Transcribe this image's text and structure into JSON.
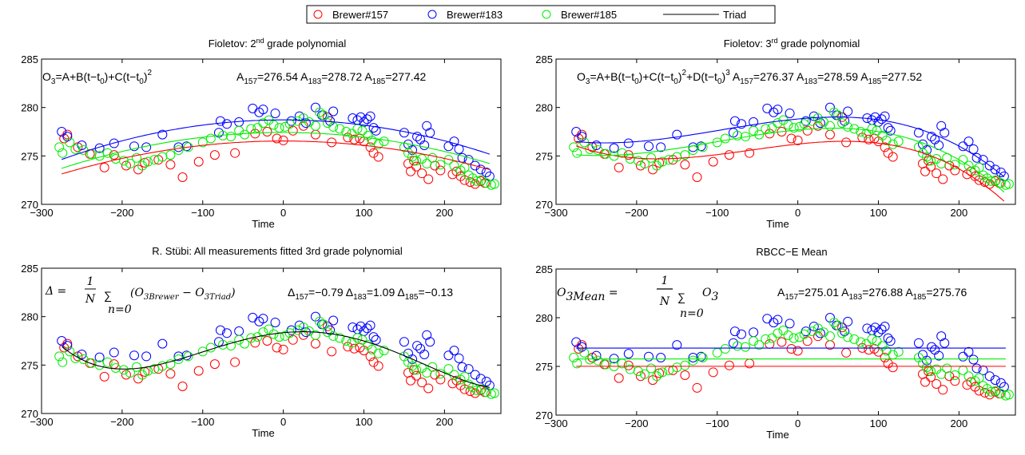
{
  "legend": {
    "entries": [
      {
        "label": "Brewer#157",
        "color": "#ff0000",
        "marker": "circle"
      },
      {
        "label": "Brewer#183",
        "color": "#0000ff",
        "marker": "circle"
      },
      {
        "label": "Brewer#185",
        "color": "#00ee00",
        "marker": "circle"
      },
      {
        "label": "Triad",
        "color": "#000000",
        "marker": "line"
      }
    ]
  },
  "panels": [
    {
      "formula_text": "O3=A+B(t−t0)+C(t−t0)²",
      "formula_parts": {
        "lhs": "O",
        "lhs_sub": "3",
        "eq": "=A+B(t−t",
        "t_sub": "0",
        "mid": ")+C(t−t",
        "t_sub2": "0",
        "end": ")",
        "pow": "2"
      },
      "stats": [
        {
          "prefix": "A",
          "sub": "157",
          "value": "=276.54"
        },
        {
          "prefix": "A",
          "sub": "183",
          "value": "=278.72"
        },
        {
          "prefix": "A",
          "sub": "185",
          "value": "=277.42"
        }
      ]
    },
    {
      "formula_text": "O3=A+B(t−t0)+C(t−t0)²+D(t−t0)³",
      "formula_parts": {
        "lhs": "O",
        "lhs_sub": "3",
        "p1": "=A+B(t−t",
        "s1": "0",
        "p2": ")+C(t−t",
        "s2": "0",
        "p3": ")",
        "pow2": "2",
        "p4": "+D(t−t",
        "s3": "0",
        "p5": ")",
        "pow3": "3"
      },
      "stats": [
        {
          "prefix": "A",
          "sub": "157",
          "value": "=276.37"
        },
        {
          "prefix": "A",
          "sub": "183",
          "value": "=278.59"
        },
        {
          "prefix": "A",
          "sub": "185",
          "value": "=277.52"
        }
      ]
    },
    {
      "formula_parts": {
        "delta": "Δ = ",
        "num": "1",
        "den": "N",
        "sum": "∑",
        "sub": "n=0",
        "body": "(O",
        "s1": "3Brewer",
        "minus": " − O",
        "s2": "3Triad",
        "close": ")"
      },
      "stats": [
        {
          "prefix": "Δ",
          "sub": "157",
          "value": "=−0.79"
        },
        {
          "prefix": "Δ",
          "sub": "183",
          "value": "=1.09"
        },
        {
          "prefix": "Δ",
          "sub": "185",
          "value": "=−0.13"
        }
      ]
    },
    {
      "formula_parts": {
        "lhs": "O",
        "lhs_sub": "3Mean",
        "eq": " = ",
        "num": "1",
        "den": "N",
        "sum": "∑",
        "sub": "n=0",
        "body": "O",
        "body_sub": "3"
      },
      "stats": [
        {
          "prefix": "A",
          "sub": "157",
          "value": "=275.01"
        },
        {
          "prefix": "A",
          "sub": "183",
          "value": "=276.88"
        },
        {
          "prefix": "A",
          "sub": "185",
          "value": "=275.76"
        }
      ]
    }
  ],
  "chart_data": [
    {
      "type": "scatter",
      "title": "Fioletov: 2nd grade polynomial",
      "title_parts": {
        "before": "Fioletov: 2",
        "sup": "nd",
        "after": " grade polynomial"
      },
      "xlabel": "Time",
      "ylabel": "",
      "xlim": [
        -300,
        270
      ],
      "ylim": [
        270,
        285
      ],
      "xticks": [
        -300,
        -200,
        -100,
        0,
        100,
        200
      ],
      "yticks": [
        270,
        275,
        280,
        285
      ],
      "grid": false,
      "fit": {
        "kind": "poly",
        "t0": 0,
        "coef": {
          "r": [
            276.54,
            0.0,
            -4.5e-05
          ],
          "b": [
            278.72,
            0.0,
            -5.4e-05
          ],
          "g": [
            277.42,
            0.0,
            -4.9e-05
          ]
        }
      }
    },
    {
      "type": "scatter",
      "title": "Fioletov: 3rd grade polynomial",
      "title_parts": {
        "before": "Fioletov: 3",
        "sup": "rd",
        "after": " grade polynomial"
      },
      "xlabel": "Time",
      "ylabel": "",
      "xlim": [
        -300,
        270
      ],
      "ylim": [
        270,
        285
      ],
      "xticks": [
        -300,
        -200,
        -100,
        0,
        100,
        200
      ],
      "yticks": [
        270,
        275,
        280,
        285
      ],
      "grid": false,
      "fit": {
        "kind": "cubic"
      }
    },
    {
      "type": "scatter",
      "title": "R. Stübi: All measurements fitted 3rd grade polynomial",
      "xlabel": "Time",
      "ylabel": "",
      "xlim": [
        -300,
        270
      ],
      "ylim": [
        270,
        285
      ],
      "xticks": [
        -300,
        -200,
        -100,
        0,
        100,
        200
      ],
      "yticks": [
        270,
        275,
        280,
        285
      ],
      "grid": false,
      "fit": {
        "kind": "triad"
      }
    },
    {
      "type": "scatter",
      "title": "RBCC−E Mean",
      "xlabel": "Time",
      "ylabel": "",
      "xlim": [
        -300,
        270
      ],
      "ylim": [
        270,
        285
      ],
      "xticks": [
        -300,
        -200,
        -100,
        0,
        100,
        200
      ],
      "yticks": [
        270,
        275,
        280,
        285
      ],
      "grid": false,
      "fit": {
        "kind": "mean",
        "values": {
          "r": 275.01,
          "b": 276.88,
          "g": 275.76
        }
      }
    }
  ],
  "series": {
    "Brewer#157": [
      [
        -272,
        276.8
      ],
      [
        -268,
        277.2
      ],
      [
        -255,
        275.9
      ],
      [
        -240,
        275.2
      ],
      [
        -222,
        273.8
      ],
      [
        -210,
        275.1
      ],
      [
        -195,
        274.0
      ],
      [
        -180,
        273.6
      ],
      [
        -172,
        274.3
      ],
      [
        -155,
        274.6
      ],
      [
        -140,
        274.1
      ],
      [
        -125,
        272.8
      ],
      [
        -105,
        274.4
      ],
      [
        -85,
        275.1
      ],
      [
        -60,
        275.3
      ],
      [
        -35,
        277.3
      ],
      [
        -20,
        277.5
      ],
      [
        -8,
        276.8
      ],
      [
        0,
        276.6
      ],
      [
        12,
        277.6
      ],
      [
        25,
        278.1
      ],
      [
        40,
        277.2
      ],
      [
        55,
        279.0
      ],
      [
        60,
        276.4
      ],
      [
        80,
        276.9
      ],
      [
        88,
        276.7
      ],
      [
        95,
        276.8
      ],
      [
        100,
        276.5
      ],
      [
        108,
        275.9
      ],
      [
        112,
        275.3
      ],
      [
        118,
        274.9
      ],
      [
        155,
        274.2
      ],
      [
        158,
        273.4
      ],
      [
        162,
        274.5
      ],
      [
        165,
        273.9
      ],
      [
        172,
        273.2
      ],
      [
        180,
        272.6
      ],
      [
        188,
        274.0
      ],
      [
        195,
        273.5
      ],
      [
        210,
        273.1
      ],
      [
        215,
        273.4
      ],
      [
        220,
        272.9
      ],
      [
        225,
        272.5
      ],
      [
        232,
        272.3
      ],
      [
        238,
        272.1
      ],
      [
        245,
        272.4
      ],
      [
        250,
        272.2
      ]
    ],
    "Brewer#183": [
      [
        -275,
        277.5
      ],
      [
        -268,
        277.0
      ],
      [
        -250,
        276.1
      ],
      [
        -228,
        275.8
      ],
      [
        -210,
        276.3
      ],
      [
        -185,
        276.0
      ],
      [
        -170,
        275.9
      ],
      [
        -150,
        277.2
      ],
      [
        -130,
        275.9
      ],
      [
        -120,
        276.0
      ],
      [
        -80,
        277.4
      ],
      [
        -78,
        278.6
      ],
      [
        -70,
        278.3
      ],
      [
        -55,
        278.5
      ],
      [
        -38,
        279.9
      ],
      [
        -30,
        279.5
      ],
      [
        -25,
        279.8
      ],
      [
        -10,
        279.4
      ],
      [
        10,
        278.6
      ],
      [
        20,
        279.1
      ],
      [
        28,
        278.4
      ],
      [
        40,
        280.0
      ],
      [
        48,
        279.2
      ],
      [
        58,
        278.6
      ],
      [
        62,
        279.6
      ],
      [
        86,
        278.9
      ],
      [
        92,
        278.7
      ],
      [
        96,
        279.0
      ],
      [
        100,
        278.5
      ],
      [
        104,
        278.8
      ],
      [
        108,
        279.1
      ],
      [
        112,
        277.9
      ],
      [
        115,
        277.6
      ],
      [
        150,
        277.4
      ],
      [
        155,
        276.2
      ],
      [
        160,
        275.6
      ],
      [
        166,
        277.0
      ],
      [
        170,
        276.7
      ],
      [
        175,
        276.1
      ],
      [
        178,
        278.1
      ],
      [
        182,
        277.4
      ],
      [
        205,
        276.0
      ],
      [
        212,
        276.5
      ],
      [
        218,
        275.7
      ],
      [
        222,
        274.8
      ],
      [
        230,
        274.6
      ],
      [
        238,
        274.0
      ],
      [
        245,
        273.6
      ],
      [
        252,
        273.3
      ],
      [
        256,
        272.9
      ]
    ],
    "Brewer#185": [
      [
        -278,
        275.9
      ],
      [
        -274,
        275.3
      ],
      [
        -265,
        276.4
      ],
      [
        -258,
        275.7
      ],
      [
        -248,
        275.6
      ],
      [
        -238,
        275.2
      ],
      [
        -228,
        275.0
      ],
      [
        -218,
        275.3
      ],
      [
        -208,
        274.7
      ],
      [
        -198,
        274.5
      ],
      [
        -190,
        274.2
      ],
      [
        -182,
        274.8
      ],
      [
        -175,
        274.0
      ],
      [
        -168,
        274.4
      ],
      [
        -160,
        274.6
      ],
      [
        -150,
        274.9
      ],
      [
        -140,
        275.1
      ],
      [
        -130,
        275.6
      ],
      [
        -118,
        275.9
      ],
      [
        -100,
        276.4
      ],
      [
        -90,
        276.8
      ],
      [
        -75,
        277.1
      ],
      [
        -65,
        277.0
      ],
      [
        -55,
        277.6
      ],
      [
        -48,
        277.2
      ],
      [
        -40,
        277.8
      ],
      [
        -32,
        277.9
      ],
      [
        -25,
        278.4
      ],
      [
        -18,
        278.7
      ],
      [
        -12,
        278.2
      ],
      [
        -5,
        277.9
      ],
      [
        2,
        278.0
      ],
      [
        8,
        278.3
      ],
      [
        18,
        278.6
      ],
      [
        25,
        278.9
      ],
      [
        32,
        278.5
      ],
      [
        40,
        278.1
      ],
      [
        45,
        279.5
      ],
      [
        50,
        279.2
      ],
      [
        55,
        278.4
      ],
      [
        62,
        278.0
      ],
      [
        70,
        277.8
      ],
      [
        78,
        277.5
      ],
      [
        85,
        277.3
      ],
      [
        92,
        277.8
      ],
      [
        98,
        277.6
      ],
      [
        105,
        277.1
      ],
      [
        110,
        276.6
      ],
      [
        118,
        276.2
      ],
      [
        125,
        276.5
      ],
      [
        150,
        275.9
      ],
      [
        155,
        275.3
      ],
      [
        160,
        274.9
      ],
      [
        165,
        274.5
      ],
      [
        172,
        274.7
      ],
      [
        178,
        274.2
      ],
      [
        185,
        274.8
      ],
      [
        195,
        274.1
      ],
      [
        205,
        274.6
      ],
      [
        212,
        274.0
      ],
      [
        220,
        273.5
      ],
      [
        225,
        273.8
      ],
      [
        230,
        273.0
      ],
      [
        235,
        272.7
      ],
      [
        240,
        272.4
      ],
      [
        246,
        272.5
      ],
      [
        252,
        272.2
      ],
      [
        258,
        272.0
      ],
      [
        262,
        272.1
      ]
    ]
  }
}
